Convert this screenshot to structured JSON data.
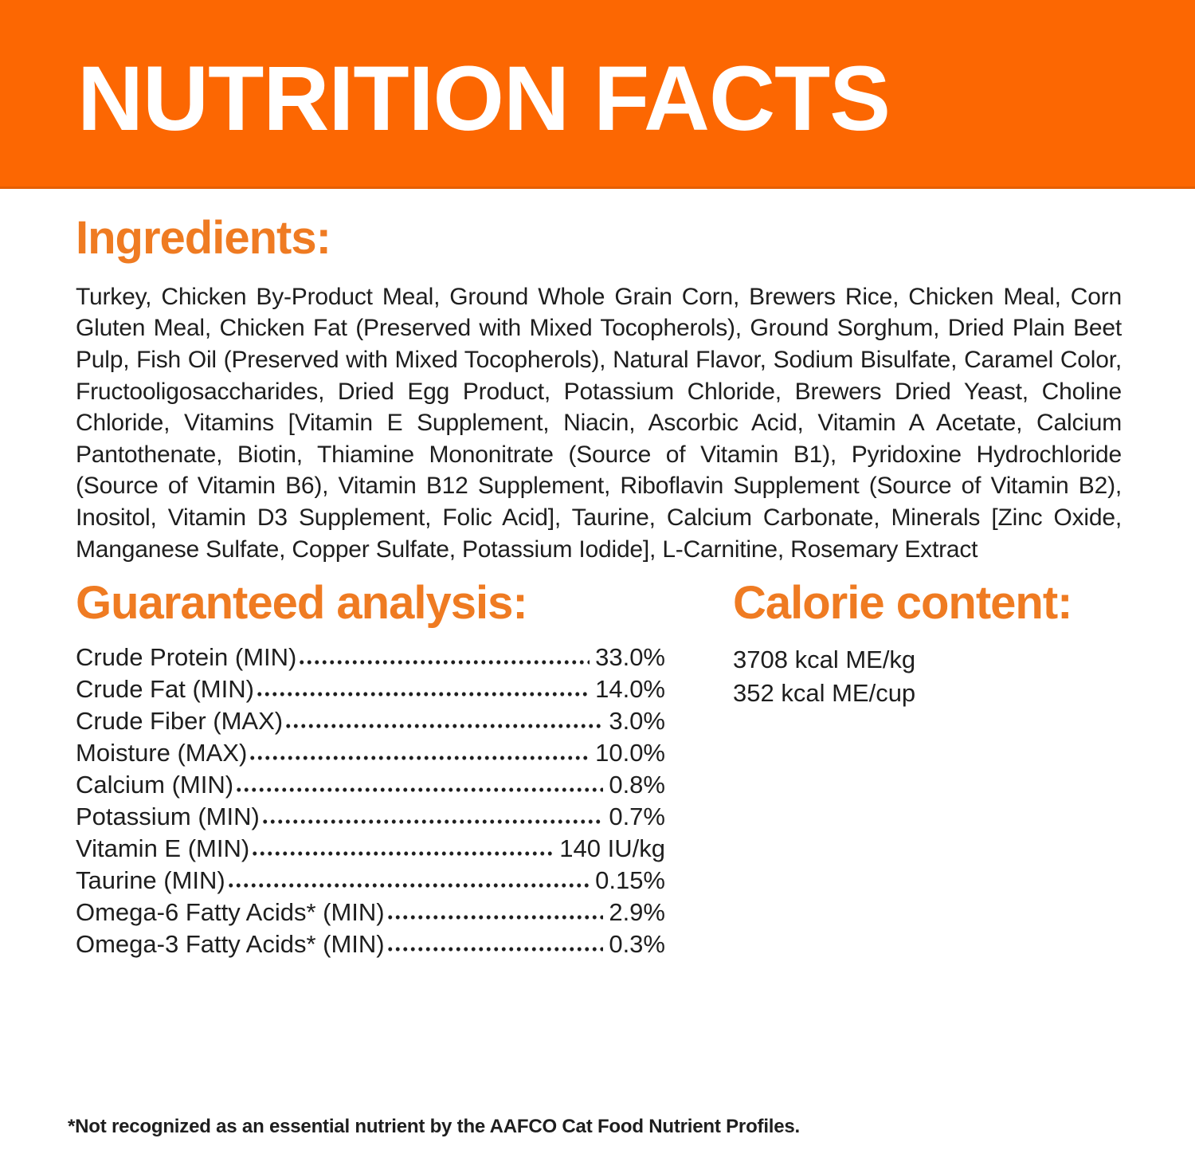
{
  "header": {
    "title": "NUTRITION FACTS"
  },
  "ingredients": {
    "heading": "Ingredients:",
    "text": "Turkey, Chicken By-Product Meal, Ground Whole Grain Corn, Brewers Rice, Chicken Meal, Corn Gluten Meal, Chicken Fat (Preserved with Mixed Tocopherols), Ground Sorghum, Dried Plain Beet Pulp, Fish Oil (Preserved with Mixed Tocopherols), Natural Flavor, Sodium Bisulfate, Caramel Color, Fructooligosaccharides, Dried Egg Product, Potassium Chloride, Brewers Dried Yeast, Choline Chloride, Vitamins [Vitamin E Supplement, Niacin, Ascorbic Acid, Vitamin A Acetate, Calcium Pantothenate, Biotin, Thiamine Mononitrate (Source of Vitamin B1), Pyridoxine Hydrochloride (Source of Vitamin B6), Vitamin B12 Supplement, Riboflavin Supplement (Source of Vitamin B2), Inositol, Vitamin D3 Supplement, Folic Acid], Taurine, Calcium Carbonate, Minerals [Zinc Oxide, Manganese Sulfate, Copper Sulfate, Potassium Iodide], L-Carnitine, Rosemary Extract"
  },
  "guaranteed_analysis": {
    "heading": "Guaranteed analysis:",
    "rows": [
      {
        "label": "Crude Protein (MIN)",
        "value": "33.0%"
      },
      {
        "label": "Crude Fat (MIN)",
        "value": "14.0%"
      },
      {
        "label": "Crude Fiber (MAX)",
        "value": "3.0%"
      },
      {
        "label": "Moisture (MAX)",
        "value": "10.0%"
      },
      {
        "label": "Calcium (MIN)",
        "value": "0.8%"
      },
      {
        "label": "Potassium (MIN)",
        "value": "0.7%"
      },
      {
        "label": "Vitamin E (MIN)",
        "value": "140 IU/kg"
      },
      {
        "label": "Taurine (MIN)",
        "value": "0.15%"
      },
      {
        "label": "Omega-6 Fatty Acids* (MIN)",
        "value": "2.9%"
      },
      {
        "label": "Omega-3 Fatty Acids* (MIN)",
        "value": "0.3%"
      }
    ]
  },
  "calorie_content": {
    "heading": "Calorie content:",
    "lines": [
      "3708 kcal ME/kg",
      "352 kcal ME/cup"
    ]
  },
  "footnote": "*Not recognized as an essential nutrient by the AAFCO Cat Food Nutrient Profiles.",
  "colors": {
    "banner_orange": "#FC6702",
    "heading_orange": "#EF7B22",
    "text_dark": "#1E1E1E"
  }
}
